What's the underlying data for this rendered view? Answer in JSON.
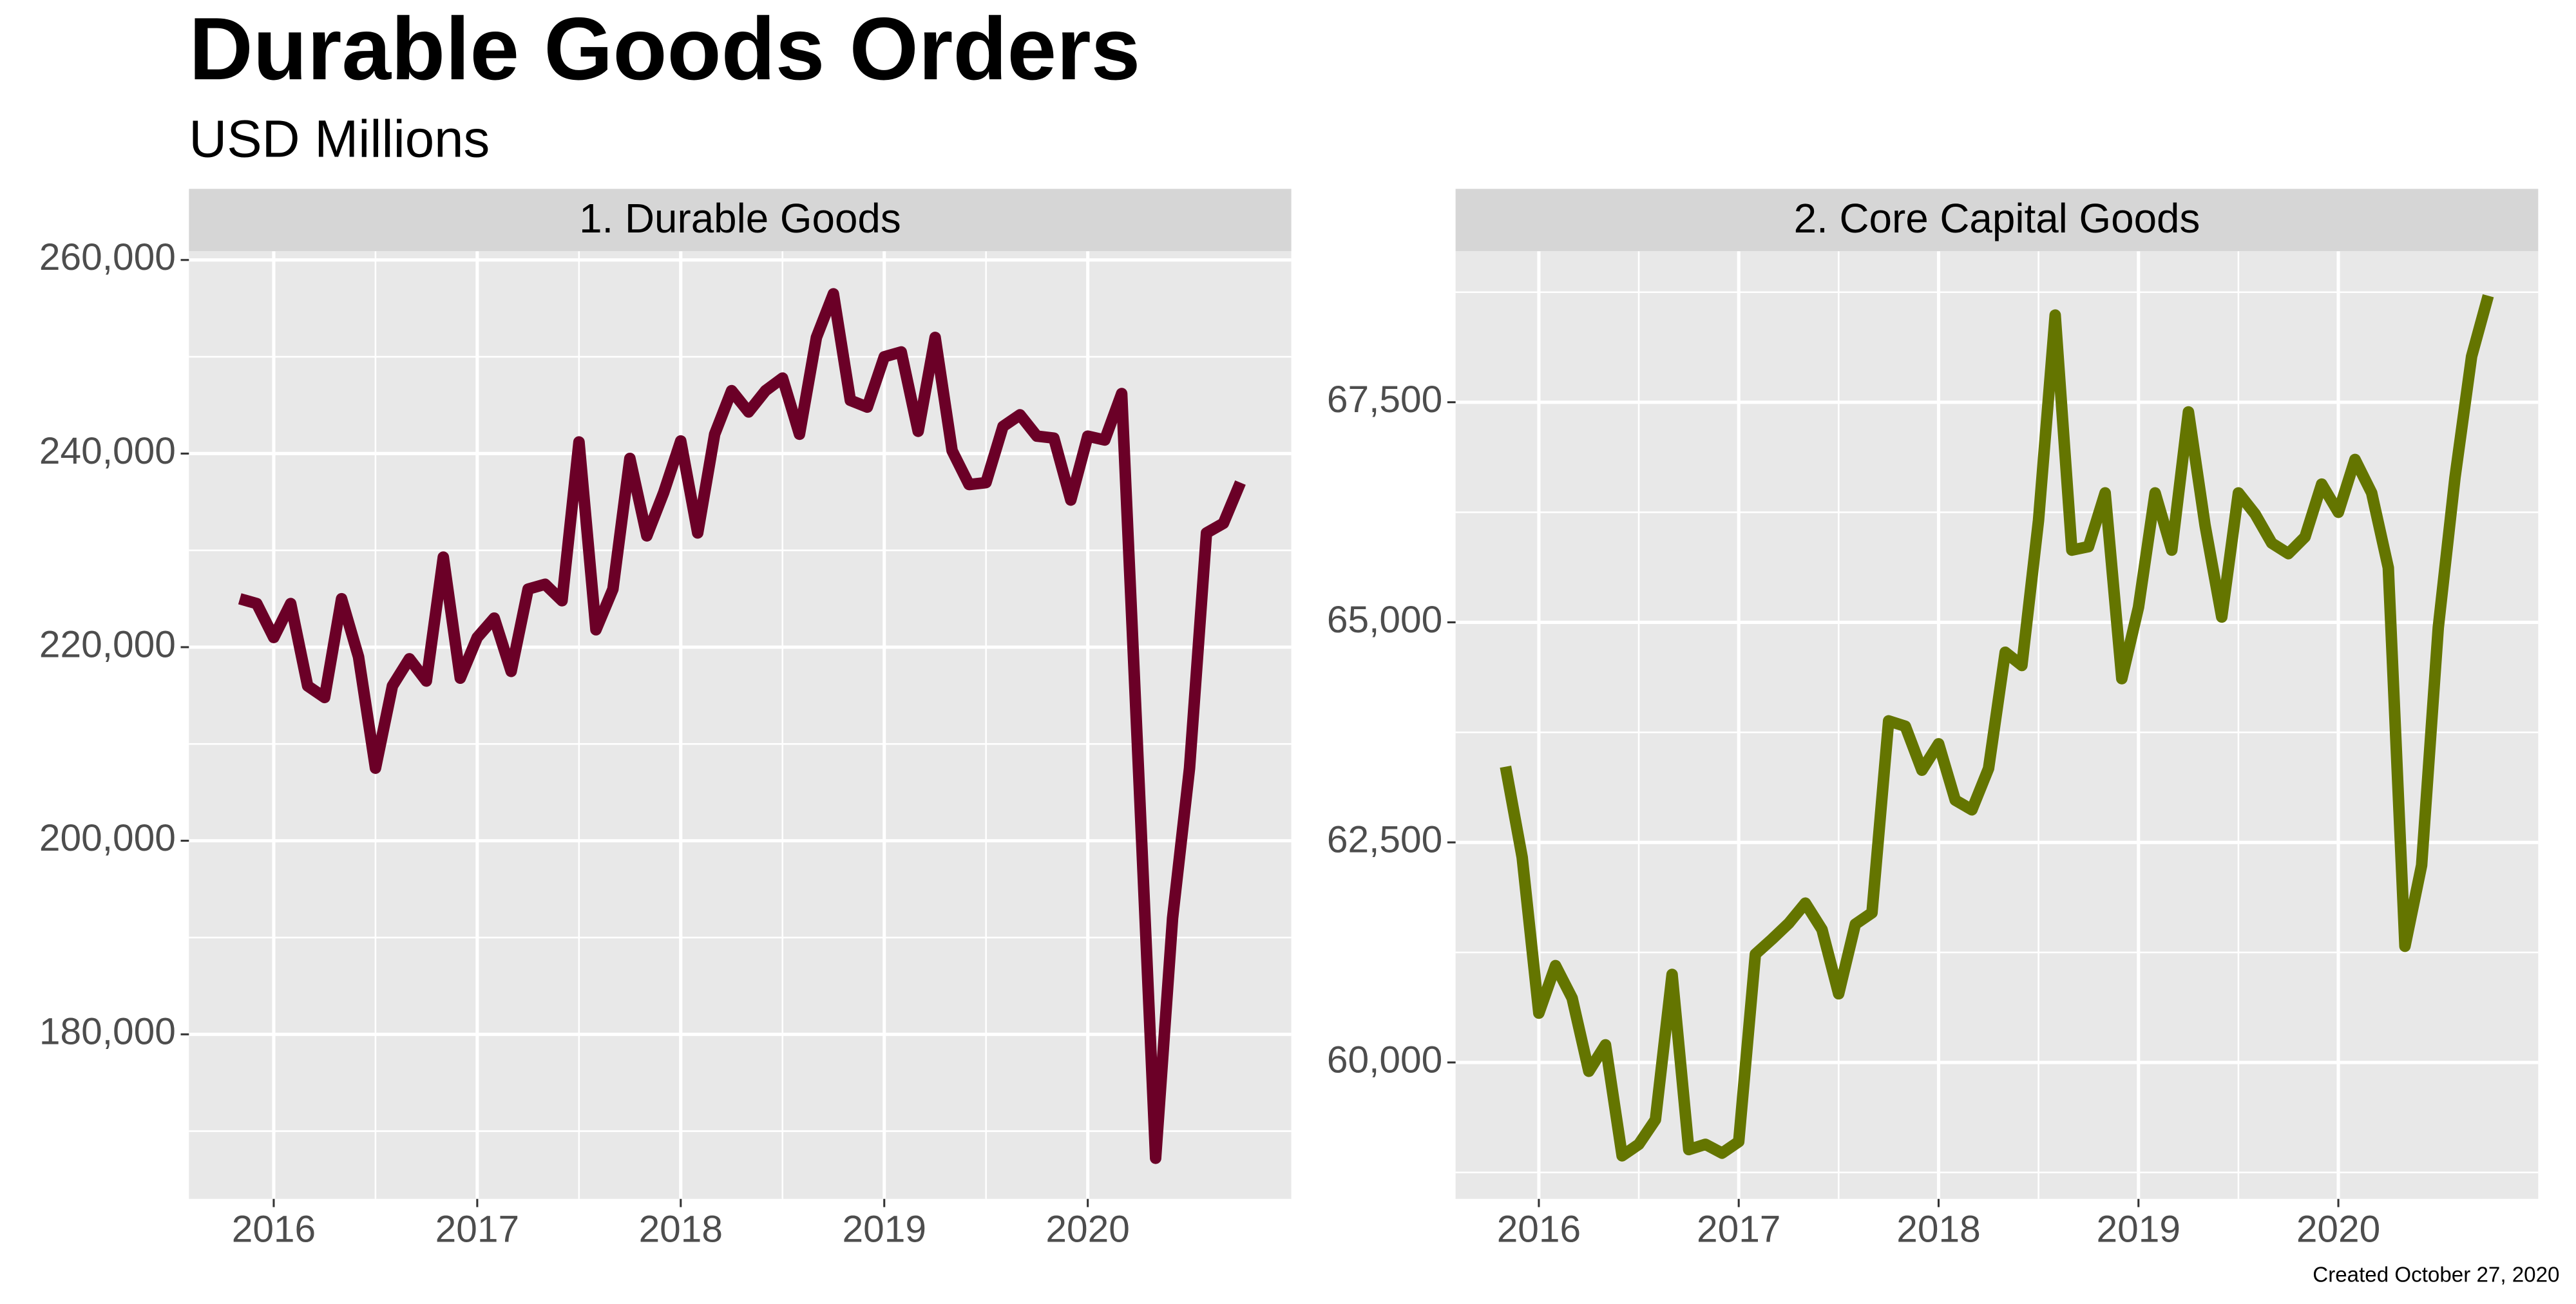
{
  "title": "Durable Goods Orders",
  "subtitle": "USD Millions",
  "caption": "Created October 27, 2020",
  "chart_data": [
    {
      "type": "line",
      "title": "1. Durable Goods",
      "color": "#6b0027",
      "x": [
        "2015-10",
        "2015-11",
        "2015-12",
        "2016-01",
        "2016-02",
        "2016-03",
        "2016-04",
        "2016-05",
        "2016-06",
        "2016-07",
        "2016-08",
        "2016-09",
        "2016-10",
        "2016-11",
        "2016-12",
        "2017-01",
        "2017-02",
        "2017-03",
        "2017-04",
        "2017-05",
        "2017-06",
        "2017-07",
        "2017-08",
        "2017-09",
        "2017-10",
        "2017-11",
        "2017-12",
        "2018-01",
        "2018-02",
        "2018-03",
        "2018-04",
        "2018-05",
        "2018-06",
        "2018-07",
        "2018-08",
        "2018-09",
        "2018-10",
        "2018-11",
        "2018-12",
        "2019-01",
        "2019-02",
        "2019-03",
        "2019-04",
        "2019-05",
        "2019-06",
        "2019-07",
        "2019-08",
        "2019-09",
        "2019-10",
        "2019-11",
        "2019-12",
        "2020-01",
        "2020-02",
        "2020-03",
        "2020-04",
        "2020-05",
        "2020-06",
        "2020-07",
        "2020-08",
        "2020-09"
      ],
      "values": [
        225000,
        224500,
        221000,
        224500,
        216000,
        214800,
        225000,
        219000,
        207500,
        216000,
        218800,
        216500,
        229300,
        216800,
        221000,
        223000,
        217500,
        226000,
        226500,
        224800,
        241200,
        221800,
        226000,
        239500,
        231500,
        236000,
        241300,
        231800,
        242000,
        246500,
        244300,
        246500,
        247800,
        242000,
        252000,
        256500,
        245500,
        244800,
        250000,
        250500,
        242300,
        252000,
        240300,
        236800,
        237000,
        242800,
        244000,
        241800,
        241600,
        235200,
        241800,
        241400,
        246200,
        207000,
        167200,
        192000,
        207500,
        231800,
        232800,
        237000
      ],
      "xlim": [
        "2015-07",
        "2020-12"
      ],
      "xticks": [
        2016,
        2017,
        2018,
        2019,
        2020
      ],
      "minor_xticks": [
        2016.5,
        2017.5,
        2018.5,
        2019.5
      ],
      "ylim": [
        163000,
        260900
      ],
      "yticks": [
        {
          "value": 180000,
          "label": "180,000"
        },
        {
          "value": 200000,
          "label": "200,000"
        },
        {
          "value": 220000,
          "label": "220,000"
        },
        {
          "value": 240000,
          "label": "240,000"
        },
        {
          "value": 260000,
          "label": "260,000"
        }
      ],
      "minor_yticks": [
        170000,
        190000,
        210000,
        230000,
        250000
      ],
      "grid": true
    },
    {
      "type": "line",
      "title": "2. Core Capital Goods",
      "color": "#647500",
      "x": [
        "2015-10",
        "2015-11",
        "2015-12",
        "2016-01",
        "2016-02",
        "2016-03",
        "2016-04",
        "2016-05",
        "2016-06",
        "2016-07",
        "2016-08",
        "2016-09",
        "2016-10",
        "2016-11",
        "2016-12",
        "2017-01",
        "2017-02",
        "2017-03",
        "2017-04",
        "2017-05",
        "2017-06",
        "2017-07",
        "2017-08",
        "2017-09",
        "2017-10",
        "2017-11",
        "2017-12",
        "2018-01",
        "2018-02",
        "2018-03",
        "2018-04",
        "2018-05",
        "2018-06",
        "2018-07",
        "2018-08",
        "2018-09",
        "2018-10",
        "2018-11",
        "2018-12",
        "2019-01",
        "2019-02",
        "2019-03",
        "2019-04",
        "2019-05",
        "2019-06",
        "2019-07",
        "2019-08",
        "2019-09",
        "2019-10",
        "2019-11",
        "2019-12",
        "2020-01",
        "2020-02",
        "2020-03",
        "2020-04",
        "2020-05",
        "2020-06",
        "2020-07",
        "2020-08",
        "2020-09"
      ],
      "values": [
        63360,
        62330,
        60560,
        61100,
        60730,
        59900,
        60200,
        58940,
        59070,
        59350,
        61000,
        59010,
        59070,
        58970,
        59100,
        61230,
        61400,
        61580,
        61810,
        61510,
        60780,
        61570,
        61700,
        63880,
        63820,
        63320,
        63620,
        62980,
        62870,
        63340,
        64660,
        64510,
        66160,
        68490,
        65820,
        65860,
        66470,
        64360,
        65170,
        66470,
        65820,
        67390,
        66100,
        65060,
        66470,
        66230,
        65900,
        65780,
        65970,
        66570,
        66250,
        66850,
        66470,
        65620,
        61320,
        62240,
        64940,
        66640,
        68020,
        68710
      ],
      "xlim": [
        "2015-07",
        "2020-12"
      ],
      "xticks": [
        2016,
        2017,
        2018,
        2019,
        2020
      ],
      "minor_xticks": [
        2016.5,
        2017.5,
        2018.5,
        2019.5
      ],
      "ylim": [
        58450,
        69215
      ],
      "yticks": [
        {
          "value": 60000,
          "label": "60,000"
        },
        {
          "value": 62500,
          "label": "62,500"
        },
        {
          "value": 65000,
          "label": "65,000"
        },
        {
          "value": 67500,
          "label": "67,500"
        }
      ],
      "minor_yticks": [
        58750,
        61250,
        63750,
        66250,
        68750
      ],
      "grid": true
    }
  ]
}
